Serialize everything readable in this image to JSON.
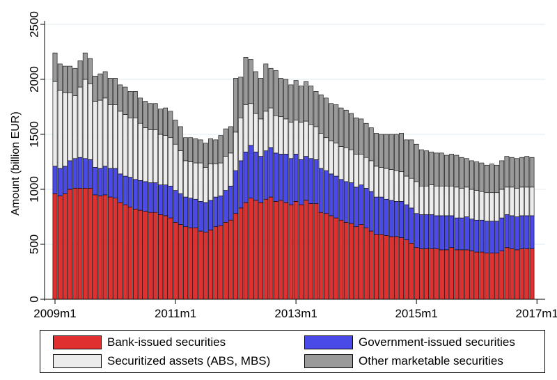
{
  "chart_data": {
    "type": "bar",
    "stacked": true,
    "ylabel": "Amount (billion EUR)",
    "ylim": [
      0,
      2500
    ],
    "yticks": [
      0,
      500,
      1000,
      1500,
      2000,
      2500
    ],
    "xtick_labels": [
      "2009m1",
      "2011m1",
      "2013m1",
      "2015m1",
      "2017m1"
    ],
    "grid": "horizontal",
    "legend_position": "bottom",
    "period_start": "2009m1",
    "period_end": "2016m12",
    "series": [
      {
        "name": "Bank-issued securities",
        "color": "#e03030",
        "values": [
          960,
          940,
          960,
          1000,
          1010,
          1010,
          1010,
          1010,
          950,
          940,
          950,
          930,
          920,
          880,
          860,
          840,
          820,
          810,
          800,
          790,
          790,
          770,
          760,
          740,
          700,
          680,
          660,
          650,
          650,
          620,
          610,
          630,
          660,
          670,
          700,
          720,
          780,
          830,
          880,
          920,
          900,
          880,
          910,
          930,
          890,
          900,
          880,
          860,
          890,
          860,
          900,
          870,
          870,
          790,
          780,
          760,
          740,
          720,
          700,
          690,
          660,
          680,
          650,
          620,
          590,
          590,
          580,
          570,
          570,
          560,
          540,
          510,
          470,
          460,
          460,
          460,
          460,
          450,
          450,
          470,
          450,
          450,
          450,
          440,
          430,
          430,
          420,
          420,
          420,
          440,
          470,
          460,
          450,
          460,
          460,
          460
        ]
      },
      {
        "name": "Government-issued securities",
        "color": "#4a4ae8",
        "values": [
          250,
          250,
          250,
          260,
          270,
          280,
          270,
          260,
          250,
          250,
          260,
          260,
          270,
          260,
          260,
          270,
          270,
          270,
          270,
          270,
          270,
          270,
          280,
          290,
          290,
          280,
          270,
          270,
          260,
          270,
          270,
          270,
          270,
          270,
          290,
          310,
          390,
          430,
          460,
          480,
          440,
          420,
          440,
          450,
          440,
          420,
          440,
          420,
          430,
          410,
          400,
          410,
          400,
          400,
          390,
          380,
          380,
          370,
          370,
          370,
          360,
          360,
          360,
          360,
          340,
          340,
          330,
          330,
          320,
          330,
          320,
          320,
          310,
          310,
          310,
          310,
          300,
          310,
          310,
          290,
          290,
          290,
          300,
          290,
          290,
          290,
          290,
          290,
          290,
          300,
          300,
          300,
          300,
          300,
          300,
          300
        ]
      },
      {
        "name": "Securitized assets (ABS, MBS)",
        "color": "#ececec",
        "values": [
          770,
          710,
          670,
          620,
          570,
          640,
          720,
          690,
          600,
          620,
          620,
          580,
          580,
          570,
          560,
          540,
          560,
          520,
          490,
          480,
          480,
          460,
          450,
          440,
          420,
          390,
          330,
          330,
          330,
          350,
          320,
          330,
          300,
          300,
          310,
          300,
          350,
          390,
          430,
          380,
          350,
          340,
          360,
          360,
          340,
          340,
          320,
          330,
          310,
          340,
          320,
          310,
          300,
          320,
          300,
          300,
          300,
          300,
          310,
          300,
          300,
          280,
          280,
          280,
          280,
          270,
          280,
          280,
          280,
          270,
          260,
          270,
          290,
          260,
          260,
          270,
          270,
          270,
          270,
          270,
          280,
          270,
          270,
          270,
          270,
          260,
          260,
          260,
          260,
          260,
          250,
          260,
          260,
          260,
          260,
          260
        ]
      },
      {
        "name": "Other marketable securities",
        "color": "#9a9a9a",
        "values": [
          260,
          240,
          240,
          240,
          250,
          240,
          240,
          230,
          230,
          240,
          240,
          240,
          240,
          240,
          250,
          240,
          240,
          230,
          240,
          240,
          240,
          230,
          250,
          240,
          220,
          220,
          210,
          220,
          220,
          210,
          220,
          230,
          220,
          250,
          250,
          240,
          490,
          370,
          430,
          400,
          380,
          370,
          430,
          360,
          410,
          350,
          360,
          340,
          360,
          330,
          360,
          350,
          320,
          350,
          360,
          340,
          350,
          350,
          340,
          330,
          330,
          320,
          310,
          300,
          300,
          300,
          310,
          320,
          330,
          350,
          330,
          350,
          340,
          330,
          320,
          300,
          300,
          300,
          280,
          290,
          290,
          280,
          260,
          260,
          260,
          260,
          250,
          260,
          250,
          260,
          280,
          270,
          270,
          270,
          280,
          270
        ]
      }
    ]
  }
}
